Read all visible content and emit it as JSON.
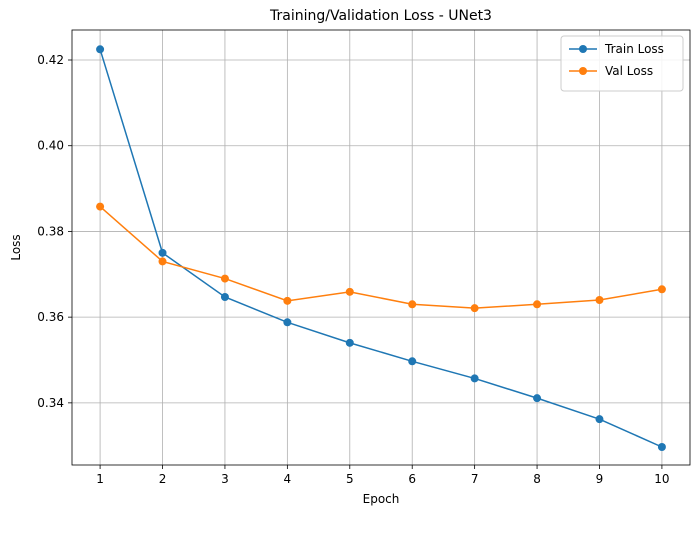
{
  "chart_data": {
    "type": "line",
    "title": "Training/Validation Loss - UNet3",
    "xlabel": "Epoch",
    "ylabel": "Loss",
    "x": [
      1,
      2,
      3,
      4,
      5,
      6,
      7,
      8,
      9,
      10
    ],
    "xlim": [
      0.55,
      10.45
    ],
    "ylim": [
      0.3255,
      0.427
    ],
    "yticks": [
      0.34,
      0.36,
      0.38,
      0.4,
      0.42
    ],
    "ytick_labels": [
      "0.34",
      "0.36",
      "0.38",
      "0.40",
      "0.42"
    ],
    "xtick_labels": [
      "1",
      "2",
      "3",
      "4",
      "5",
      "6",
      "7",
      "8",
      "9",
      "10"
    ],
    "grid": true,
    "legend_position": "top-right",
    "series": [
      {
        "name": "Train Loss",
        "color": "#1f77b4",
        "marker": "circle",
        "values": [
          0.4225,
          0.375,
          0.3647,
          0.3588,
          0.354,
          0.3497,
          0.3457,
          0.3411,
          0.3362,
          0.3297
        ]
      },
      {
        "name": "Val Loss",
        "color": "#ff7f0e",
        "marker": "circle",
        "values": [
          0.3858,
          0.373,
          0.369,
          0.3638,
          0.3659,
          0.363,
          0.3621,
          0.363,
          0.364,
          0.3665
        ]
      }
    ]
  }
}
